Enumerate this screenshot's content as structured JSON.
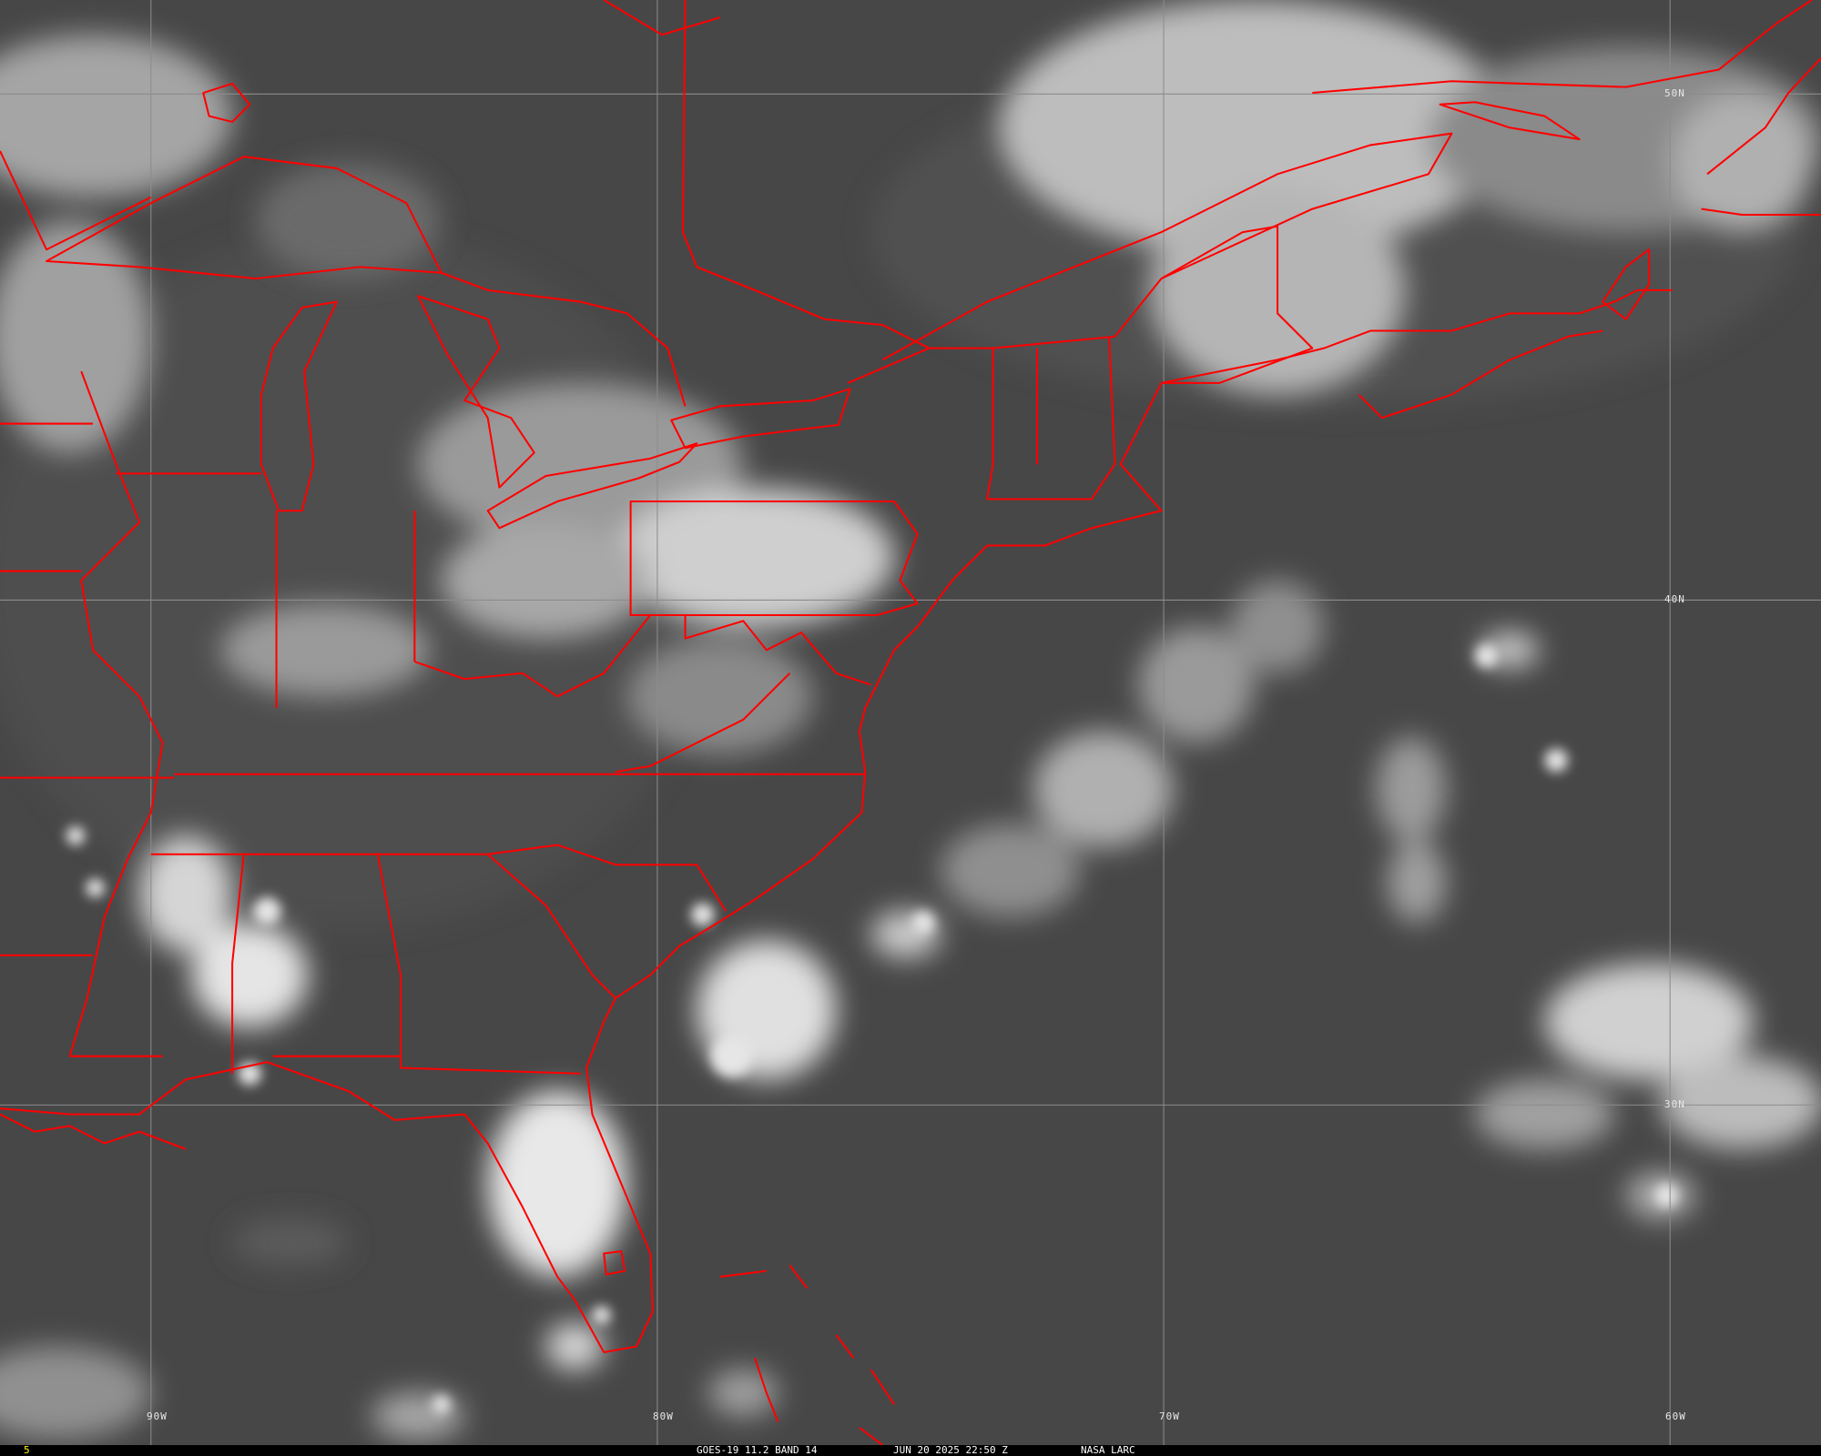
{
  "map": {
    "colors": {
      "background": "#484848",
      "borders": "#ff0000",
      "gridlines": "#8c8c8c",
      "clouds": "#f0f0f0"
    },
    "latitude_labels": [
      "50N",
      "40N",
      "30N"
    ],
    "longitude_labels": [
      "90W",
      "80W",
      "70W",
      "60W"
    ]
  },
  "footer": {
    "frame_number": "5",
    "frame_number_color": "#ffff00",
    "satellite_band": "GOES-19 11.2 BAND 14",
    "timestamp": "JUN 20 2025 22:50 Z",
    "credit": "NASA LARC"
  }
}
